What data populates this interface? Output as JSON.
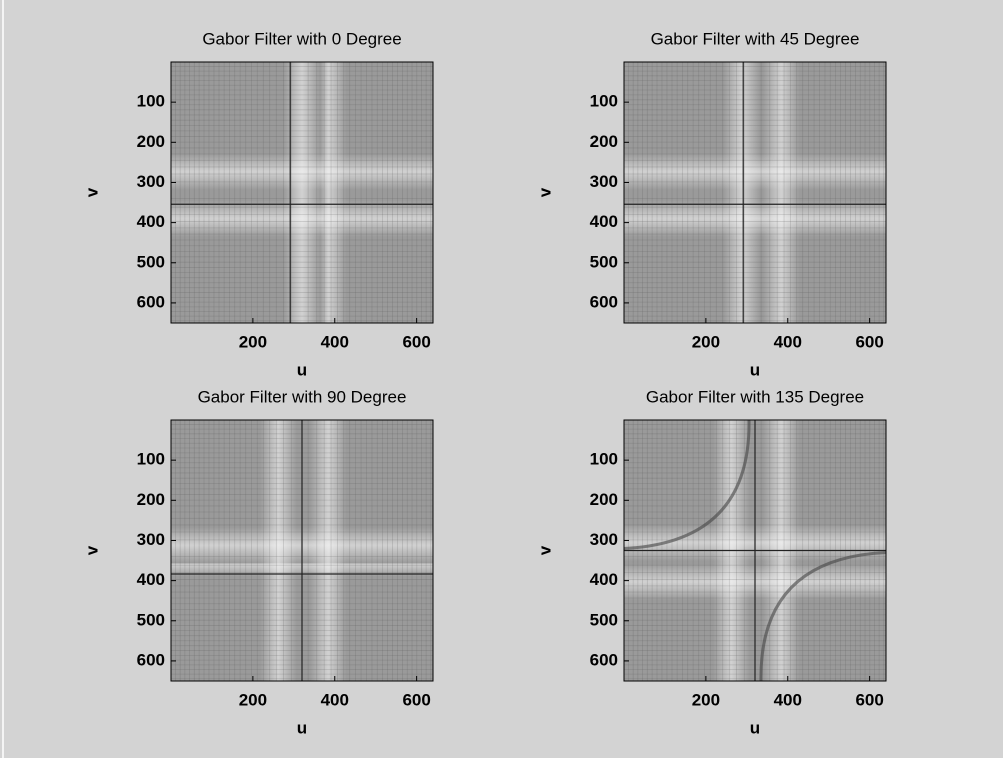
{
  "chart_data": [
    {
      "type": "image",
      "title": "Gabor Filter with 0 Degree",
      "xlabel": "u",
      "ylabel": "v",
      "xlim": [
        0,
        640
      ],
      "ylim": [
        0,
        650
      ],
      "y_reversed": true,
      "xticks": [
        200,
        400,
        600
      ],
      "yticks": [
        100,
        200,
        300,
        400,
        500,
        600
      ]
    },
    {
      "type": "image",
      "title": "Gabor Filter with 45 Degree",
      "xlabel": "u",
      "ylabel": "v",
      "xlim": [
        0,
        640
      ],
      "ylim": [
        0,
        650
      ],
      "y_reversed": true,
      "xticks": [
        200,
        400,
        600
      ],
      "yticks": [
        100,
        200,
        300,
        400,
        500,
        600
      ]
    },
    {
      "type": "image",
      "title": "Gabor Filter with 90 Degree",
      "xlabel": "u",
      "ylabel": "v",
      "xlim": [
        0,
        640
      ],
      "ylim": [
        0,
        650
      ],
      "y_reversed": true,
      "xticks": [
        200,
        400,
        600
      ],
      "yticks": [
        100,
        200,
        300,
        400,
        500,
        600
      ]
    },
    {
      "type": "image",
      "title": "Gabor Filter with 135 Degree",
      "xlabel": "u",
      "ylabel": "v",
      "xlim": [
        0,
        640
      ],
      "ylim": [
        0,
        650
      ],
      "y_reversed": true,
      "xticks": [
        200,
        400,
        600
      ],
      "yticks": [
        100,
        200,
        300,
        400,
        500,
        600
      ]
    }
  ]
}
